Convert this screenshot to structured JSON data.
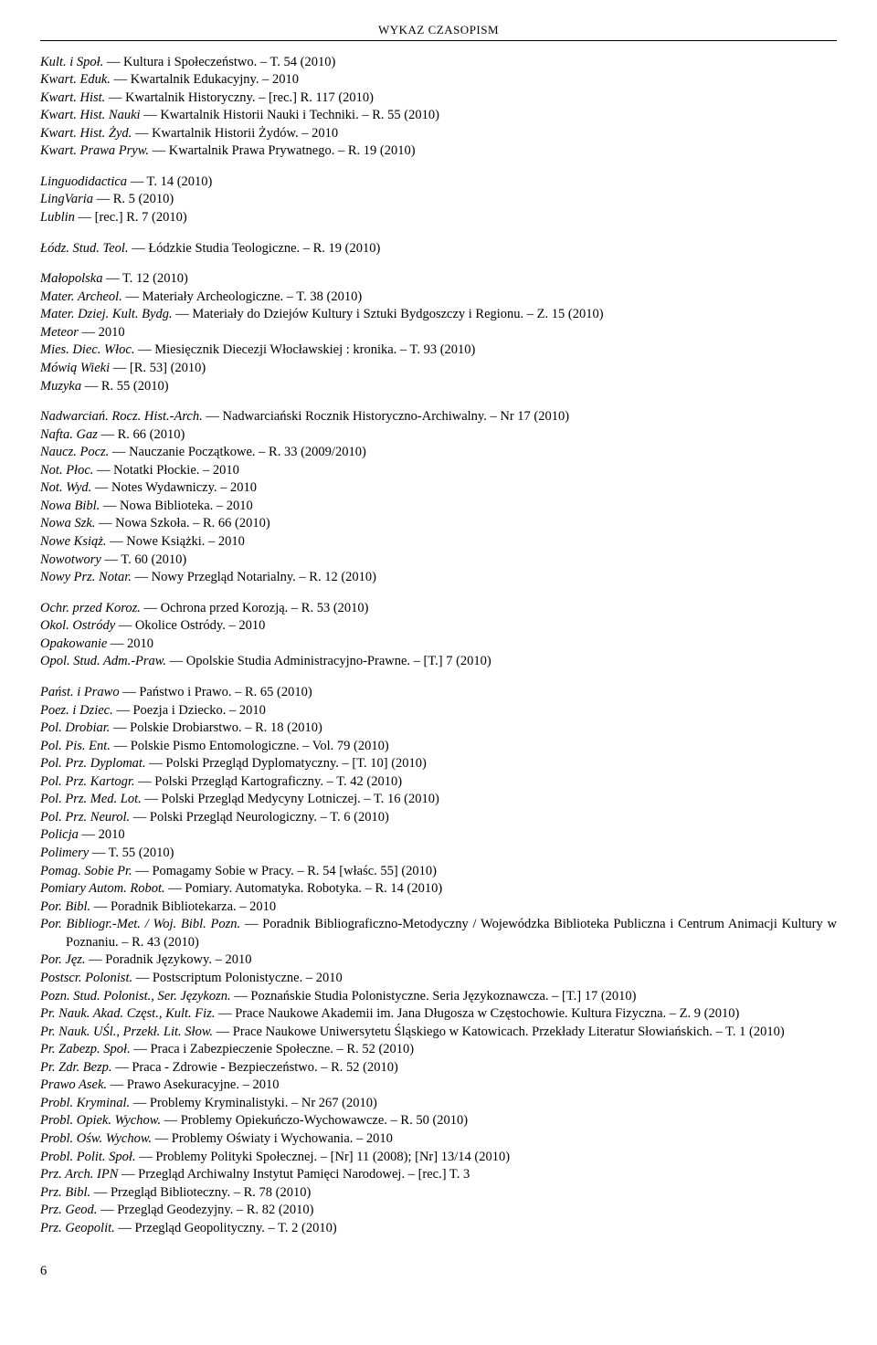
{
  "header": "WYKAZ CZASOPISM",
  "page_number": "6",
  "sections": [
    {
      "entries": [
        [
          [
            "Kult. i Społ.",
            true
          ],
          [
            " — Kultura i Społeczeństwo. – T. 54 (2010)",
            false
          ]
        ],
        [
          [
            "Kwart. Eduk.",
            true
          ],
          [
            " — Kwartalnik Edukacyjny. – 2010",
            false
          ]
        ],
        [
          [
            "Kwart. Hist.",
            true
          ],
          [
            " — Kwartalnik Historyczny. – [rec.] R. 117 (2010)",
            false
          ]
        ],
        [
          [
            "Kwart. Hist. Nauki",
            true
          ],
          [
            " — Kwartalnik Historii Nauki i Techniki. – R. 55 (2010)",
            false
          ]
        ],
        [
          [
            "Kwart. Hist. Żyd.",
            true
          ],
          [
            " — Kwartalnik Historii Żydów. – 2010",
            false
          ]
        ],
        [
          [
            "Kwart. Prawa Pryw.",
            true
          ],
          [
            " — Kwartalnik Prawa Prywatnego. – R. 19 (2010)",
            false
          ]
        ]
      ]
    },
    {
      "entries": [
        [
          [
            "Linguodidactica",
            true
          ],
          [
            " — T. 14 (2010)",
            false
          ]
        ],
        [
          [
            "LingVaria",
            true
          ],
          [
            " — R. 5 (2010)",
            false
          ]
        ],
        [
          [
            "Lublin",
            true
          ],
          [
            " — [rec.] R. 7 (2010)",
            false
          ]
        ]
      ]
    },
    {
      "entries": [
        [
          [
            "Łódz. Stud. Teol.",
            true
          ],
          [
            " — Łódzkie Studia Teologiczne. – R. 19 (2010)",
            false
          ]
        ]
      ]
    },
    {
      "entries": [
        [
          [
            "Małopolska",
            true
          ],
          [
            " — T. 12 (2010)",
            false
          ]
        ],
        [
          [
            "Mater. Archeol.",
            true
          ],
          [
            " — Materiały Archeologiczne. – T. 38 (2010)",
            false
          ]
        ],
        [
          [
            "Mater. Dziej. Kult. Bydg.",
            true
          ],
          [
            " — Materiały do Dziejów Kultury i Sztuki Bydgoszczy i Regionu. – Z. 15 (2010)",
            false
          ]
        ],
        [
          [
            "Meteor",
            true
          ],
          [
            " — 2010",
            false
          ]
        ],
        [
          [
            "Mies. Diec. Włoc.",
            true
          ],
          [
            " — Miesięcznik Diecezji Włocławskiej : kronika. – T. 93 (2010)",
            false
          ]
        ],
        [
          [
            "Mówią Wieki",
            true
          ],
          [
            " — [R. 53] (2010)",
            false
          ]
        ],
        [
          [
            "Muzyka",
            true
          ],
          [
            " — R. 55 (2010)",
            false
          ]
        ]
      ]
    },
    {
      "entries": [
        [
          [
            "Nadwarciań. Rocz. Hist.-Arch.",
            true
          ],
          [
            " — Nadwarciański Rocznik Historyczno-Archiwalny. – Nr 17 (2010)",
            false
          ]
        ],
        [
          [
            "Nafta. Gaz",
            true
          ],
          [
            " — R. 66 (2010)",
            false
          ]
        ],
        [
          [
            "Naucz. Pocz.",
            true
          ],
          [
            " — Nauczanie Początkowe. – R. 33 (2009/2010)",
            false
          ]
        ],
        [
          [
            "Not. Płoc.",
            true
          ],
          [
            " — Notatki Płockie. – 2010",
            false
          ]
        ],
        [
          [
            "Not. Wyd.",
            true
          ],
          [
            " — Notes Wydawniczy. – 2010",
            false
          ]
        ],
        [
          [
            "Nowa Bibl.",
            true
          ],
          [
            " — Nowa Biblioteka. – 2010",
            false
          ]
        ],
        [
          [
            "Nowa Szk.",
            true
          ],
          [
            " — Nowa Szkoła. – R. 66 (2010)",
            false
          ]
        ],
        [
          [
            "Nowe Książ.",
            true
          ],
          [
            " — Nowe Książki. – 2010",
            false
          ]
        ],
        [
          [
            "Nowotwory",
            true
          ],
          [
            " — T. 60 (2010)",
            false
          ]
        ],
        [
          [
            "Nowy Prz. Notar.",
            true
          ],
          [
            " — Nowy Przegląd Notarialny. – R. 12 (2010)",
            false
          ]
        ]
      ]
    },
    {
      "entries": [
        [
          [
            "Ochr. przed Koroz.",
            true
          ],
          [
            " — Ochrona przed Korozją. – R. 53 (2010)",
            false
          ]
        ],
        [
          [
            "Okol. Ostródy",
            true
          ],
          [
            " — Okolice Ostródy. – 2010",
            false
          ]
        ],
        [
          [
            "Opakowanie",
            true
          ],
          [
            " — 2010",
            false
          ]
        ],
        [
          [
            "Opol. Stud. Adm.-Praw.",
            true
          ],
          [
            " — Opolskie Studia Administracyjno-Prawne. – [T.] 7 (2010)",
            false
          ]
        ]
      ]
    },
    {
      "entries": [
        [
          [
            "Państ. i Prawo",
            true
          ],
          [
            " — Państwo i Prawo. – R. 65 (2010)",
            false
          ]
        ],
        [
          [
            "Poez. i Dziec.",
            true
          ],
          [
            " — Poezja i Dziecko. – 2010",
            false
          ]
        ],
        [
          [
            "Pol. Drobiar.",
            true
          ],
          [
            " — Polskie Drobiarstwo. – R. 18 (2010)",
            false
          ]
        ],
        [
          [
            "Pol. Pis. Ent.",
            true
          ],
          [
            " — Polskie Pismo Entomologiczne. – Vol. 79 (2010)",
            false
          ]
        ],
        [
          [
            "Pol. Prz. Dyplomat.",
            true
          ],
          [
            " — Polski Przegląd Dyplomatyczny. – [T. 10] (2010)",
            false
          ]
        ],
        [
          [
            "Pol. Prz. Kartogr.",
            true
          ],
          [
            " — Polski Przegląd Kartograficzny. – T. 42 (2010)",
            false
          ]
        ],
        [
          [
            "Pol. Prz. Med. Lot.",
            true
          ],
          [
            " — Polski Przegląd Medycyny Lotniczej. – T. 16 (2010)",
            false
          ]
        ],
        [
          [
            "Pol. Prz. Neurol.",
            true
          ],
          [
            " — Polski Przegląd Neurologiczny. – T. 6 (2010)",
            false
          ]
        ],
        [
          [
            "Policja",
            true
          ],
          [
            " — 2010",
            false
          ]
        ],
        [
          [
            "Polimery",
            true
          ],
          [
            " — T. 55 (2010)",
            false
          ]
        ],
        [
          [
            "Pomag. Sobie Pr.",
            true
          ],
          [
            " — Pomagamy Sobie w Pracy. – R. 54 [właśc. 55] (2010)",
            false
          ]
        ],
        [
          [
            "Pomiary Autom. Robot.",
            true
          ],
          [
            " — Pomiary. Automatyka. Robotyka. – R. 14 (2010)",
            false
          ]
        ],
        [
          [
            "Por. Bibl.",
            true
          ],
          [
            " — Poradnik Bibliotekarza. – 2010",
            false
          ]
        ],
        [
          [
            "Por. Bibliogr.-Met. / Woj. Bibl. Pozn.",
            true
          ],
          [
            " — Poradnik Bibliograficzno-Metodyczny / Wojewódzka Biblioteka Publiczna i Centrum Animacji Kultury w Poznaniu. – R. 43 (2010)",
            false
          ]
        ],
        [
          [
            "Por. Jęz.",
            true
          ],
          [
            " — Poradnik Językowy. – 2010",
            false
          ]
        ],
        [
          [
            "Postscr. Polonist.",
            true
          ],
          [
            " — Postscriptum Polonistyczne. – 2010",
            false
          ]
        ],
        [
          [
            "Pozn. Stud. Polonist., Ser. Językozn.",
            true
          ],
          [
            " — Poznańskie Studia Polonistyczne. Seria Językoznawcza. – [T.] 17 (2010)",
            false
          ]
        ],
        [
          [
            "Pr. Nauk. Akad. Częst., Kult. Fiz.",
            true
          ],
          [
            " — Prace Naukowe Akademii im. Jana Długosza w Częstochowie. Kultura Fizyczna. – Z. 9 (2010)",
            false
          ]
        ],
        [
          [
            "Pr. Nauk. UŚl., Przekł. Lit. Słow.",
            true
          ],
          [
            " — Prace Naukowe Uniwersytetu Śląskiego w Katowicach. Przekłady Literatur Słowiańskich. – T. 1 (2010)",
            false
          ]
        ],
        [
          [
            "Pr. Zabezp. Społ.",
            true
          ],
          [
            " — Praca i Zabezpieczenie Społeczne. – R. 52 (2010)",
            false
          ]
        ],
        [
          [
            "Pr. Zdr. Bezp.",
            true
          ],
          [
            " — Praca - Zdrowie - Bezpieczeństwo. – R. 52 (2010)",
            false
          ]
        ],
        [
          [
            "Prawo Asek.",
            true
          ],
          [
            " — Prawo Asekuracyjne. – 2010",
            false
          ]
        ],
        [
          [
            "Probl. Kryminal.",
            true
          ],
          [
            " — Problemy Kryminalistyki. – Nr 267 (2010)",
            false
          ]
        ],
        [
          [
            "Probl. Opiek. Wychow.",
            true
          ],
          [
            " — Problemy Opiekuńczo-Wychowawcze. – R. 50 (2010)",
            false
          ]
        ],
        [
          [
            "Probl. Ośw. Wychow.",
            true
          ],
          [
            " — Problemy Oświaty i Wychowania. – 2010",
            false
          ]
        ],
        [
          [
            "Probl. Polit. Społ.",
            true
          ],
          [
            " — Problemy Polityki Społecznej. – [Nr] 11 (2008); [Nr] 13/14 (2010)",
            false
          ]
        ],
        [
          [
            "Prz. Arch. IPN",
            true
          ],
          [
            " — Przegląd Archiwalny Instytut Pamięci Narodowej. – [rec.] T. 3",
            false
          ]
        ],
        [
          [
            "Prz. Bibl.",
            true
          ],
          [
            " — Przegląd Biblioteczny. – R. 78 (2010)",
            false
          ]
        ],
        [
          [
            "Prz. Geod.",
            true
          ],
          [
            " — Przegląd Geodezyjny. – R. 82 (2010)",
            false
          ]
        ],
        [
          [
            "Prz. Geopolit.",
            true
          ],
          [
            " — Przegląd Geopolityczny. – T. 2 (2010)",
            false
          ]
        ]
      ]
    }
  ]
}
